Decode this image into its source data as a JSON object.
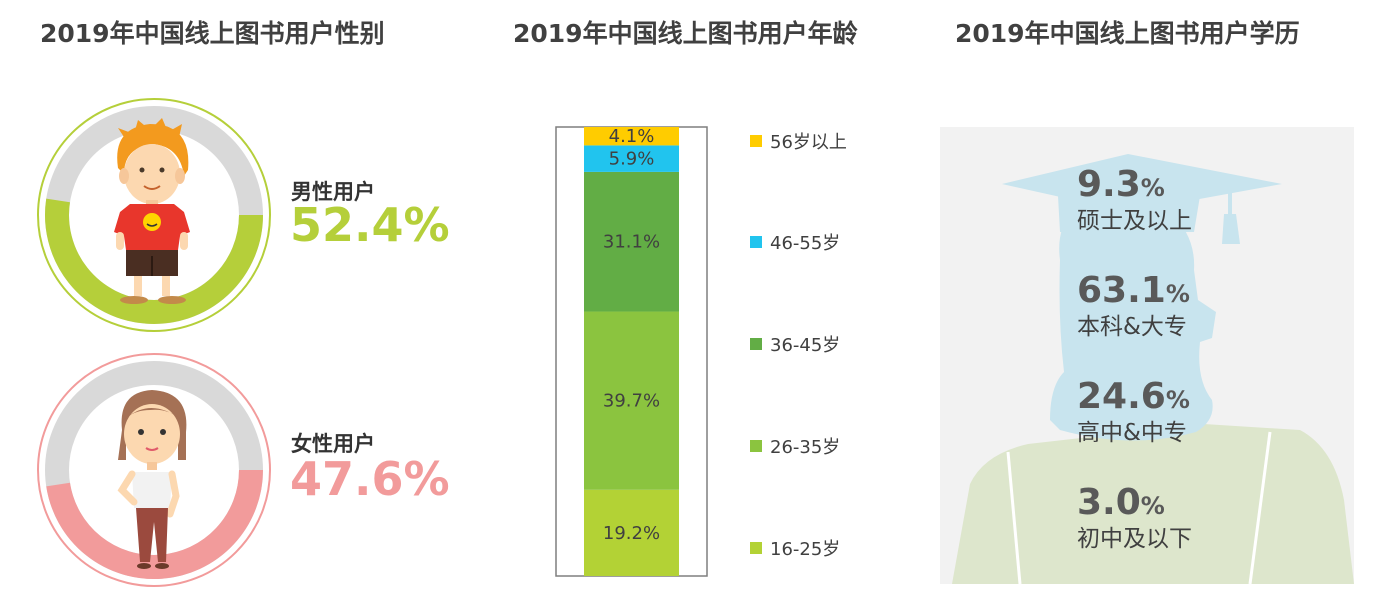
{
  "titles": {
    "gender": "2019年中国线上图书用户性别",
    "age": "2019年中国线上图书用户年龄",
    "education": "2019年中国线上图书用户学历"
  },
  "gender": {
    "male_label": "男性用户",
    "male_pct": "52.4%",
    "female_label": "女性用户",
    "female_pct": "47.6%"
  },
  "colors": {
    "male": "#b5cf3a",
    "female": "#f29b9b",
    "ring_gray": "#d9d9d9",
    "age_16_25": "#b3d235",
    "age_26_35": "#8bc43f",
    "age_36_45": "#62ad45",
    "age_46_55": "#21c4ee",
    "age_56_plus": "#ffcc00"
  },
  "age_legend": [
    "56岁以上",
    "46-55岁",
    "36-45岁",
    "26-35岁",
    "16-25岁"
  ],
  "education": [
    {
      "value": "9.3",
      "unit": "%",
      "label": "硕士及以上"
    },
    {
      "value": "63.1",
      "unit": "%",
      "label": "本科&大专"
    },
    {
      "value": "24.6",
      "unit": "%",
      "label": "高中&中专"
    },
    {
      "value": "3.0",
      "unit": "%",
      "label": "初中及以下"
    }
  ],
  "chart_data": [
    {
      "type": "pie",
      "title": "2019年中国线上图书用户性别",
      "categories": [
        "男性用户",
        "女性用户"
      ],
      "values": [
        52.4,
        47.6
      ]
    },
    {
      "type": "bar",
      "title": "2019年中国线上图书用户年龄",
      "stacked": true,
      "categories": [
        "16-25岁",
        "26-35岁",
        "36-45岁",
        "46-55岁",
        "56岁以上"
      ],
      "values": [
        19.2,
        39.7,
        31.1,
        5.9,
        4.1
      ],
      "labels": [
        "19.2%",
        "39.7%",
        "31.1%",
        "5.9%",
        "4.1%"
      ],
      "colors": [
        "#b3d235",
        "#8bc43f",
        "#62ad45",
        "#21c4ee",
        "#ffcc00"
      ]
    },
    {
      "type": "table",
      "title": "2019年中国线上图书用户学历",
      "categories": [
        "硕士及以上",
        "本科&大专",
        "高中&中专",
        "初中及以下"
      ],
      "values": [
        9.3,
        63.1,
        24.6,
        3.0
      ]
    }
  ]
}
